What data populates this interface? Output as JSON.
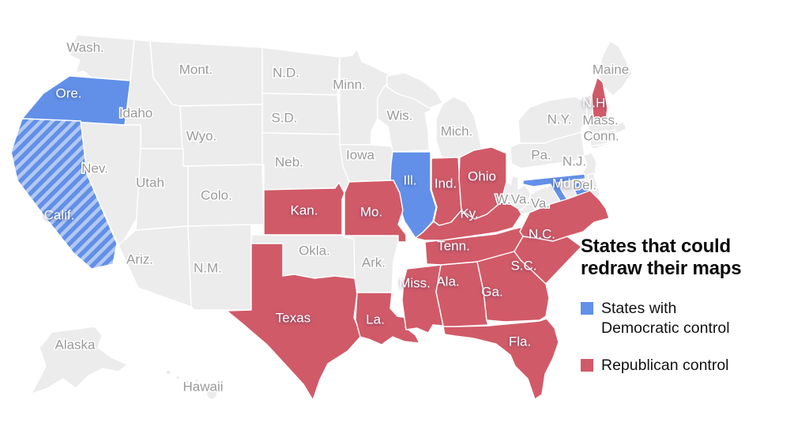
{
  "panel": {
    "title_line1": "States that could",
    "title_line2": "redraw their maps",
    "democratic_line1": "States with",
    "democratic_line2": "Democratic control",
    "republican_line1": "Republican control"
  },
  "colors": {
    "democratic": "#6290e8",
    "democratic_stripe_light": "#b3c9f2",
    "republican": "#d15a68",
    "neutral": "#ececec",
    "border": "#ffffff",
    "neutral_label": "#9a9a9a",
    "state_label_on_color": "#ffffff",
    "title_text": "#0a0a0a",
    "legend_text": "#121212",
    "background": "#ffffff"
  },
  "states": [
    {
      "id": "wash",
      "label": "Wash.",
      "control": "none"
    },
    {
      "id": "idaho",
      "label": "Idaho",
      "control": "none"
    },
    {
      "id": "mont",
      "label": "Mont.",
      "control": "none"
    },
    {
      "id": "wyo",
      "label": "Wyo.",
      "control": "none"
    },
    {
      "id": "nev",
      "label": "Nev.",
      "control": "none"
    },
    {
      "id": "utah",
      "label": "Utah",
      "control": "none"
    },
    {
      "id": "colo",
      "label": "Colo.",
      "control": "none"
    },
    {
      "id": "ariz",
      "label": "Ariz.",
      "control": "none"
    },
    {
      "id": "nm",
      "label": "N.M.",
      "control": "none"
    },
    {
      "id": "nd",
      "label": "N.D.",
      "control": "none"
    },
    {
      "id": "sd",
      "label": "S.D.",
      "control": "none"
    },
    {
      "id": "neb",
      "label": "Neb.",
      "control": "none"
    },
    {
      "id": "okla",
      "label": "Okla.",
      "control": "none"
    },
    {
      "id": "minn",
      "label": "Minn.",
      "control": "none"
    },
    {
      "id": "iowa",
      "label": "Iowa",
      "control": "none"
    },
    {
      "id": "wis",
      "label": "Wis.",
      "control": "none"
    },
    {
      "id": "mich",
      "label": "Mich.",
      "control": "none"
    },
    {
      "id": "ark",
      "label": "Ark.",
      "control": "none"
    },
    {
      "id": "wva",
      "label": "W.Va.",
      "control": "none"
    },
    {
      "id": "va",
      "label": "Va.",
      "control": "none"
    },
    {
      "id": "pa",
      "label": "Pa.",
      "control": "none"
    },
    {
      "id": "ny",
      "label": "N.Y.",
      "control": "none"
    },
    {
      "id": "nj",
      "label": "N.J.",
      "control": "none"
    },
    {
      "id": "vt",
      "label": "",
      "control": "none"
    },
    {
      "id": "maine",
      "label": "Maine",
      "control": "none"
    },
    {
      "id": "mass",
      "label": "Mass.",
      "control": "none"
    },
    {
      "id": "conn",
      "label": "Conn.",
      "control": "none"
    },
    {
      "id": "ri",
      "label": "",
      "control": "none"
    },
    {
      "id": "del",
      "label": "Del.",
      "control": "none"
    },
    {
      "id": "alaska",
      "label": "Alaska",
      "control": "none"
    },
    {
      "id": "hawaii",
      "label": "Hawaii",
      "control": "none"
    },
    {
      "id": "ore",
      "label": "Ore.",
      "control": "democratic"
    },
    {
      "id": "calif",
      "label": "Calif.",
      "control": "democratic_striped"
    },
    {
      "id": "ill",
      "label": "Ill.",
      "control": "democratic"
    },
    {
      "id": "md",
      "label": "Md.",
      "control": "democratic"
    },
    {
      "id": "kan",
      "label": "Kan.",
      "control": "republican"
    },
    {
      "id": "texas",
      "label": "Texas",
      "control": "republican"
    },
    {
      "id": "mo",
      "label": "Mo.",
      "control": "republican"
    },
    {
      "id": "la",
      "label": "La.",
      "control": "republican"
    },
    {
      "id": "miss",
      "label": "Miss.",
      "control": "republican"
    },
    {
      "id": "ala",
      "label": "Ala.",
      "control": "republican"
    },
    {
      "id": "tenn",
      "label": "Tenn.",
      "control": "republican"
    },
    {
      "id": "ky",
      "label": "Ky.",
      "control": "republican"
    },
    {
      "id": "ind",
      "label": "Ind.",
      "control": "republican"
    },
    {
      "id": "ohio",
      "label": "Ohio",
      "control": "republican"
    },
    {
      "id": "ga",
      "label": "Ga.",
      "control": "republican"
    },
    {
      "id": "fla",
      "label": "Fla.",
      "control": "republican"
    },
    {
      "id": "sc",
      "label": "S.C.",
      "control": "republican"
    },
    {
      "id": "nc",
      "label": "N.C.",
      "control": "republican"
    },
    {
      "id": "nh",
      "label": "N.H.",
      "control": "republican"
    }
  ]
}
